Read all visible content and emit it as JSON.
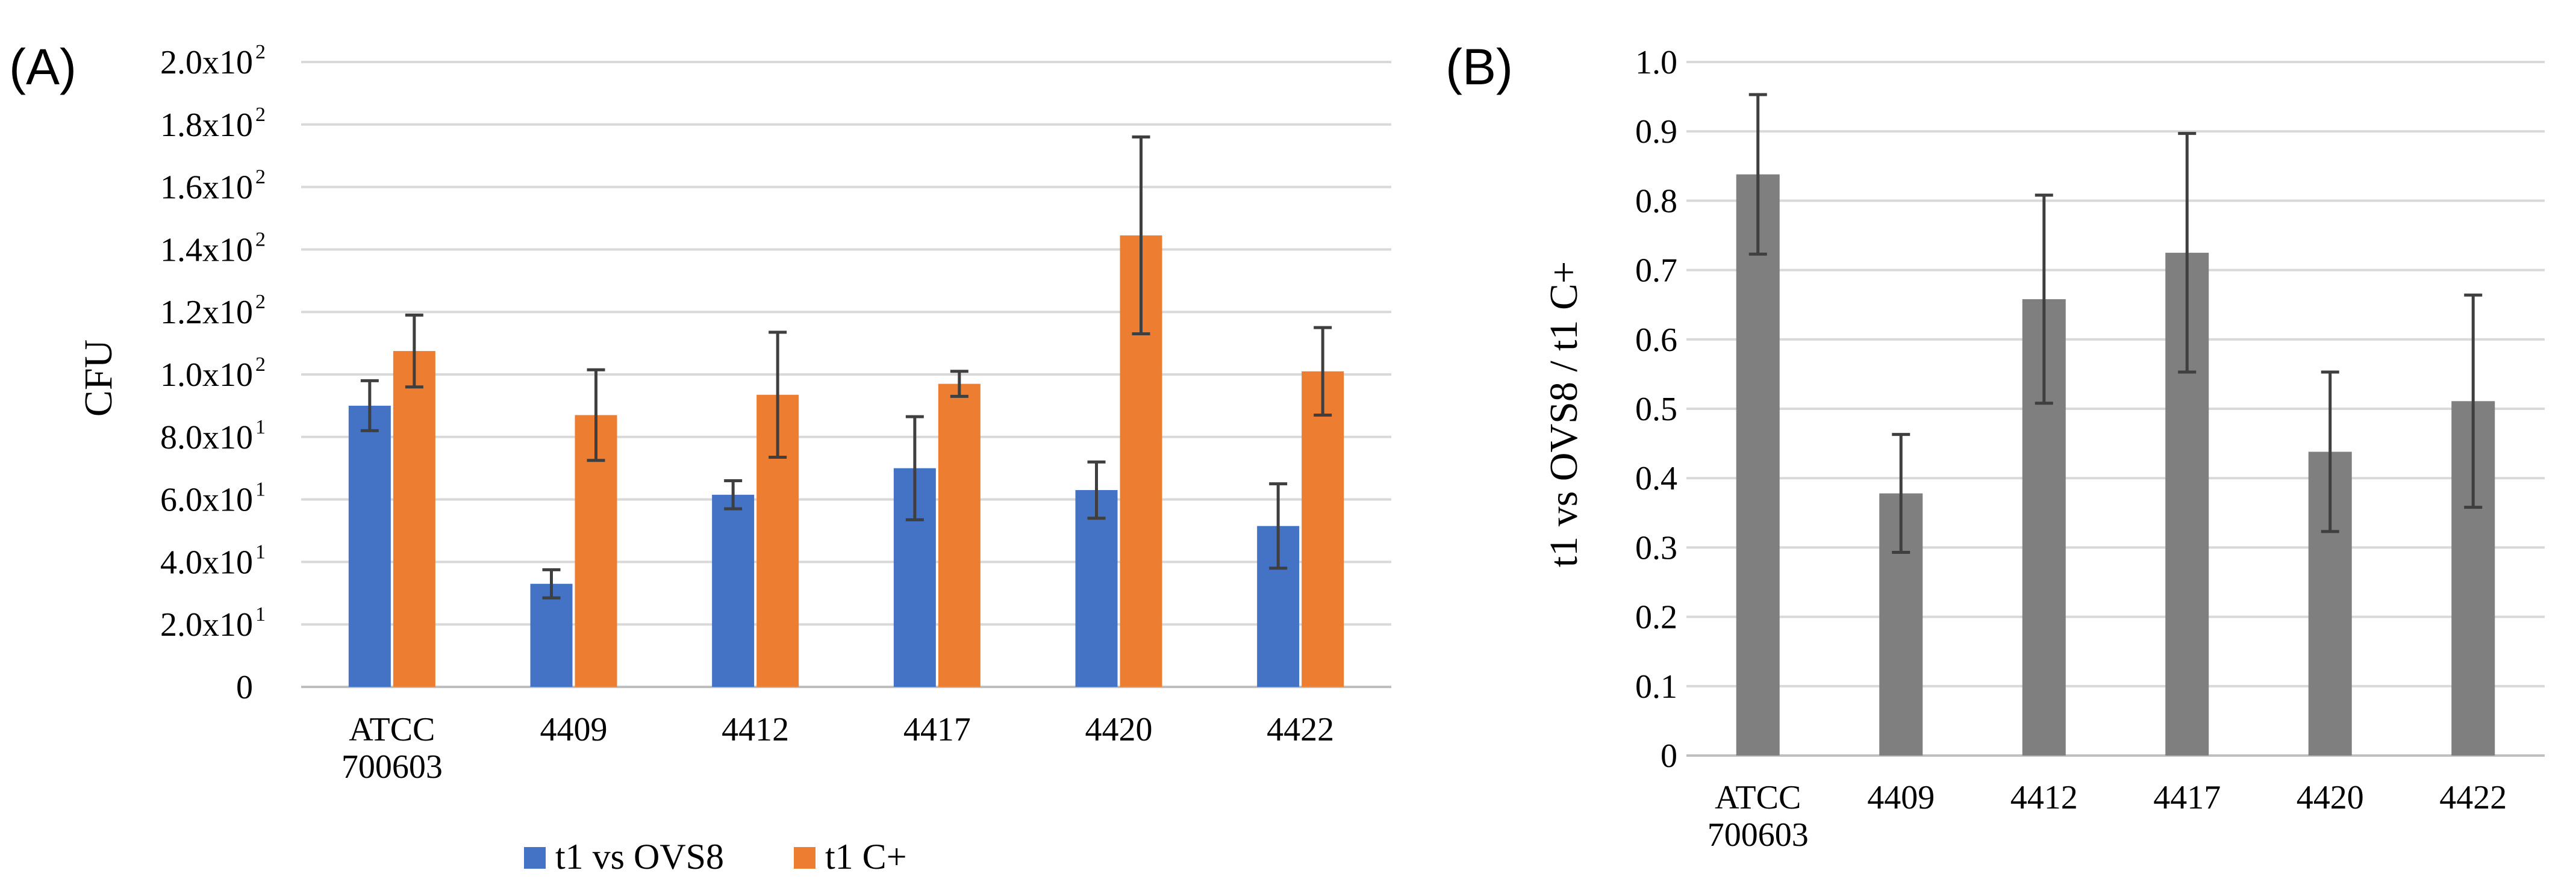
{
  "chart_data": [
    {
      "panel": "(A)",
      "type": "bar",
      "ylabel": "CFU",
      "ylim": [
        0,
        200
      ],
      "yticks": [
        {
          "mant": "0",
          "exp": ""
        },
        {
          "mant": "2.0x10",
          "exp": "1"
        },
        {
          "mant": "4.0x10",
          "exp": "1"
        },
        {
          "mant": "6.0x10",
          "exp": "1"
        },
        {
          "mant": "8.0x10",
          "exp": "1"
        },
        {
          "mant": "1.0x10",
          "exp": "2"
        },
        {
          "mant": "1.2x10",
          "exp": "2"
        },
        {
          "mant": "1.4x10",
          "exp": "2"
        },
        {
          "mant": "1.6x10",
          "exp": "2"
        },
        {
          "mant": "1.8x10",
          "exp": "2"
        },
        {
          "mant": "2.0x10",
          "exp": "2"
        }
      ],
      "categories": [
        [
          "ATCC",
          "700603"
        ],
        [
          "4409"
        ],
        [
          "4412"
        ],
        [
          "4417"
        ],
        [
          "4420"
        ],
        [
          "4422"
        ]
      ],
      "series": [
        {
          "name": "t1 vs OVS8",
          "color": "#4472c4",
          "values": [
            90,
            33,
            61.5,
            70,
            63,
            51.5
          ],
          "errors": [
            8,
            4.5,
            4.5,
            16.5,
            9,
            13.5
          ]
        },
        {
          "name": "t1 C+",
          "color": "#ed7d31",
          "values": [
            107.5,
            87,
            93.5,
            97,
            144.5,
            101
          ],
          "errors": [
            11.5,
            14.5,
            20,
            4,
            31.5,
            14
          ]
        }
      ],
      "legend_position": "bottom-center"
    },
    {
      "panel": "(B)",
      "type": "bar",
      "ylabel": "t1 vs OVS8 / t1 C+",
      "ylim": [
        0,
        1.0
      ],
      "yticks": [
        "0",
        "0.1",
        "0.2",
        "0.3",
        "0.4",
        "0.5",
        "0.6",
        "0.7",
        "0.8",
        "0.9",
        "1.0"
      ],
      "categories": [
        [
          "ATCC",
          "700603"
        ],
        [
          "4409"
        ],
        [
          "4412"
        ],
        [
          "4417"
        ],
        [
          "4420"
        ],
        [
          "4422"
        ]
      ],
      "series": [
        {
          "name": "t1 vs OVS8 / t1 C+",
          "color": "#7f7f7f",
          "values": [
            0.838,
            0.378,
            0.658,
            0.725,
            0.438,
            0.511
          ],
          "errors": [
            0.115,
            0.085,
            0.15,
            0.172,
            0.115,
            0.153
          ]
        }
      ]
    }
  ]
}
